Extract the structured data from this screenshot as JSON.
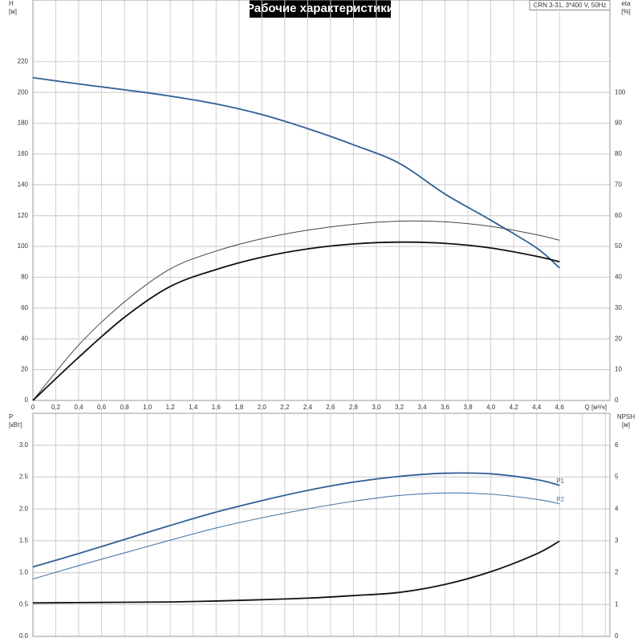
{
  "chart_data": [
    {
      "type": "line",
      "title": "Рабочие характеристики",
      "annotation": "CRN 3-31, 3*400 V, 50Hz",
      "ylabel": "H",
      "yunit": "[м]",
      "y2label": "eta",
      "y2unit": "[%]",
      "xlabel": "Q [м³/ч]",
      "x": [
        0,
        0.4,
        0.8,
        1.2,
        1.6,
        2.0,
        2.4,
        2.8,
        3.2,
        3.6,
        4.0,
        4.4,
        4.6
      ],
      "series": [
        {
          "color": "#2f5f96",
          "values": [
            209.6,
            205.5,
            201.7,
            197.6,
            192.5,
            185.6,
            176.5,
            166,
            154,
            134,
            117,
            99,
            86
          ]
        },
        {
          "color": "#444444",
          "axis": "y2",
          "values": [
            0,
            18,
            32,
            42.7,
            48.5,
            52.5,
            55.3,
            57.2,
            58.2,
            58,
            56.5,
            53.8,
            52
          ]
        },
        {
          "color": "#111111",
          "axis": "y2",
          "values": [
            0,
            14,
            27,
            37,
            42.5,
            46.5,
            49.2,
            50.8,
            51.4,
            51,
            49.5,
            46.8,
            45
          ]
        }
      ],
      "xlim": [
        0,
        5.04
      ],
      "xticks": [
        0,
        {
          "value": 0.2,
          "label": "0,2"
        },
        {
          "value": 0.4,
          "label": "0,4"
        },
        {
          "value": 0.6,
          "label": "0,6"
        },
        {
          "value": 0.8,
          "label": "0,8"
        },
        {
          "value": 1.0,
          "label": "1,0"
        },
        {
          "value": 1.2,
          "label": "1,2"
        },
        {
          "value": 1.4,
          "label": "1,4"
        },
        {
          "value": 1.6,
          "label": "1,6"
        },
        {
          "value": 1.8,
          "label": "1,8"
        },
        {
          "value": 2.0,
          "label": "2,0"
        },
        {
          "value": 2.2,
          "label": "2,2"
        },
        {
          "value": 2.4,
          "label": "2,4"
        },
        {
          "value": 2.6,
          "label": "2,6"
        },
        {
          "value": 2.8,
          "label": "2,8"
        },
        {
          "value": 3.0,
          "label": "3,0"
        },
        {
          "value": 3.2,
          "label": "3,2"
        },
        {
          "value": 3.4,
          "label": "3,4"
        },
        {
          "value": 3.6,
          "label": "3,6"
        },
        {
          "value": 3.8,
          "label": "3,8"
        },
        {
          "value": 4.0,
          "label": "4,0"
        },
        {
          "value": 4.2,
          "label": "4,2"
        },
        {
          "value": 4.4,
          "label": "4,4"
        },
        {
          "value": 4.6,
          "label": "4,6"
        }
      ],
      "ylim": [
        0,
        260
      ],
      "yticks": [
        0,
        20,
        40,
        60,
        80,
        100,
        120,
        140,
        160,
        180,
        200,
        220
      ],
      "y2lim": [
        0,
        130
      ],
      "y2ticks": [
        0,
        10,
        20,
        30,
        40,
        50,
        60,
        70,
        80,
        90,
        100
      ],
      "grid": true
    },
    {
      "type": "line",
      "ylabel": "P",
      "yunit": "[кВт]",
      "y2label": "NPSH",
      "y2unit": "[м]",
      "x": [
        0,
        0.4,
        0.8,
        1.2,
        1.6,
        2.0,
        2.4,
        2.8,
        3.2,
        3.6,
        4.0,
        4.4,
        4.6
      ],
      "series": [
        {
          "name": "P1",
          "color": "#2f5f96",
          "values": [
            1.09,
            1.3,
            1.52,
            1.74,
            1.95,
            2.13,
            2.29,
            2.42,
            2.51,
            2.56,
            2.55,
            2.46,
            2.37
          ]
        },
        {
          "name": "P2",
          "color": "#4a78a8",
          "values": [
            0.9,
            1.11,
            1.31,
            1.51,
            1.7,
            1.86,
            2.0,
            2.12,
            2.21,
            2.25,
            2.23,
            2.15,
            2.08
          ]
        },
        {
          "color": "#111111",
          "axis": "y2",
          "values": [
            1.05,
            1.06,
            1.07,
            1.08,
            1.11,
            1.15,
            1.2,
            1.28,
            1.38,
            1.63,
            2.03,
            2.59,
            2.99
          ]
        }
      ],
      "xlim": [
        0,
        5.04
      ],
      "xticks": [
        0,
        0.2,
        0.4,
        0.6,
        0.8,
        1.0,
        1.2,
        1.4,
        1.6,
        1.8,
        2.0,
        2.2,
        2.4,
        2.6,
        2.8,
        3.0,
        3.2,
        3.4,
        3.6,
        3.8,
        4.0,
        4.2,
        4.4,
        4.6,
        4.8,
        5.0
      ],
      "ylim": [
        0,
        3.5
      ],
      "yticks": [
        {
          "value": 0,
          "label": "0.0"
        },
        0.5,
        {
          "value": 1,
          "label": "1.0"
        },
        1.5,
        {
          "value": 2,
          "label": "2.0"
        },
        2.5,
        {
          "value": 3,
          "label": "3.0"
        }
      ],
      "y2lim": [
        0,
        7
      ],
      "y2ticks": [
        0,
        1,
        2,
        3,
        4,
        5,
        6
      ],
      "grid": true
    }
  ]
}
